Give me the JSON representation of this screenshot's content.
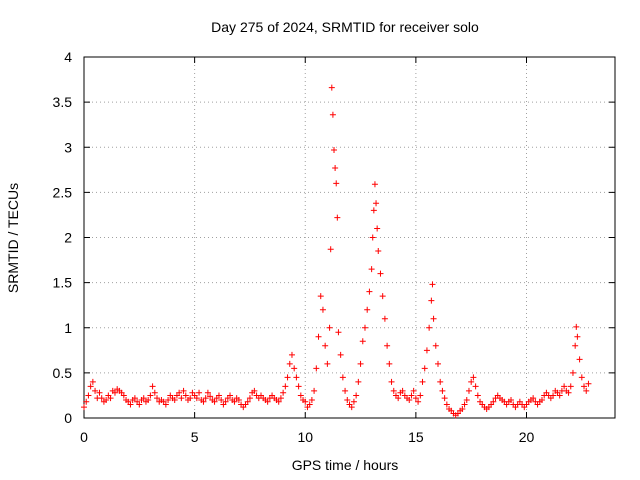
{
  "chart_data": {
    "type": "scatter",
    "title": "Day 275 of 2024, SRMTID for receiver solo",
    "xlabel": "GPS time / hours",
    "ylabel": "SRMTID / TECUs",
    "xlim": [
      0,
      24
    ],
    "ylim": [
      0,
      4
    ],
    "xticks": [
      0,
      5,
      10,
      15,
      20
    ],
    "yticks": [
      0,
      0.5,
      1,
      1.5,
      2,
      2.5,
      3,
      3.5,
      4
    ],
    "xtick_labels": [
      "0",
      "5",
      "10",
      "15",
      "20"
    ],
    "ytick_labels": [
      "0",
      "0.5",
      "1",
      "1.5",
      "2",
      "2.5",
      "3",
      "3.5",
      "4"
    ],
    "grid": true,
    "marker": "+",
    "series": [
      {
        "name": "SRMTID",
        "color": "#ff0000",
        "points": [
          [
            0.0,
            0.12
          ],
          [
            0.1,
            0.18
          ],
          [
            0.2,
            0.25
          ],
          [
            0.3,
            0.35
          ],
          [
            0.4,
            0.4
          ],
          [
            0.5,
            0.3
          ],
          [
            0.6,
            0.22
          ],
          [
            0.7,
            0.28
          ],
          [
            0.8,
            0.22
          ],
          [
            0.9,
            0.18
          ],
          [
            1.0,
            0.2
          ],
          [
            1.1,
            0.25
          ],
          [
            1.2,
            0.22
          ],
          [
            1.3,
            0.3
          ],
          [
            1.4,
            0.28
          ],
          [
            1.5,
            0.32
          ],
          [
            1.6,
            0.3
          ],
          [
            1.7,
            0.28
          ],
          [
            1.8,
            0.25
          ],
          [
            1.9,
            0.2
          ],
          [
            2.0,
            0.18
          ],
          [
            2.1,
            0.15
          ],
          [
            2.2,
            0.2
          ],
          [
            2.3,
            0.22
          ],
          [
            2.4,
            0.18
          ],
          [
            2.5,
            0.15
          ],
          [
            2.6,
            0.2
          ],
          [
            2.7,
            0.22
          ],
          [
            2.8,
            0.18
          ],
          [
            2.9,
            0.2
          ],
          [
            3.0,
            0.25
          ],
          [
            3.1,
            0.35
          ],
          [
            3.2,
            0.28
          ],
          [
            3.3,
            0.22
          ],
          [
            3.4,
            0.18
          ],
          [
            3.5,
            0.2
          ],
          [
            3.6,
            0.18
          ],
          [
            3.7,
            0.15
          ],
          [
            3.8,
            0.2
          ],
          [
            3.9,
            0.25
          ],
          [
            4.0,
            0.22
          ],
          [
            4.1,
            0.2
          ],
          [
            4.2,
            0.25
          ],
          [
            4.3,
            0.28
          ],
          [
            4.4,
            0.22
          ],
          [
            4.5,
            0.3
          ],
          [
            4.6,
            0.25
          ],
          [
            4.7,
            0.2
          ],
          [
            4.8,
            0.22
          ],
          [
            4.9,
            0.28
          ],
          [
            5.0,
            0.25
          ],
          [
            5.1,
            0.22
          ],
          [
            5.2,
            0.28
          ],
          [
            5.3,
            0.2
          ],
          [
            5.4,
            0.18
          ],
          [
            5.5,
            0.22
          ],
          [
            5.6,
            0.28
          ],
          [
            5.7,
            0.24
          ],
          [
            5.8,
            0.2
          ],
          [
            5.9,
            0.18
          ],
          [
            6.0,
            0.22
          ],
          [
            6.1,
            0.25
          ],
          [
            6.2,
            0.2
          ],
          [
            6.3,
            0.15
          ],
          [
            6.4,
            0.18
          ],
          [
            6.5,
            0.22
          ],
          [
            6.6,
            0.25
          ],
          [
            6.7,
            0.2
          ],
          [
            6.8,
            0.18
          ],
          [
            6.9,
            0.22
          ],
          [
            7.0,
            0.2
          ],
          [
            7.1,
            0.15
          ],
          [
            7.2,
            0.12
          ],
          [
            7.3,
            0.15
          ],
          [
            7.4,
            0.18
          ],
          [
            7.5,
            0.22
          ],
          [
            7.6,
            0.28
          ],
          [
            7.7,
            0.3
          ],
          [
            7.8,
            0.25
          ],
          [
            7.9,
            0.22
          ],
          [
            8.0,
            0.25
          ],
          [
            8.1,
            0.22
          ],
          [
            8.2,
            0.2
          ],
          [
            8.3,
            0.18
          ],
          [
            8.4,
            0.22
          ],
          [
            8.5,
            0.25
          ],
          [
            8.6,
            0.22
          ],
          [
            8.7,
            0.2
          ],
          [
            8.8,
            0.18
          ],
          [
            8.9,
            0.22
          ],
          [
            9.0,
            0.28
          ],
          [
            9.1,
            0.35
          ],
          [
            9.2,
            0.45
          ],
          [
            9.3,
            0.6
          ],
          [
            9.4,
            0.7
          ],
          [
            9.5,
            0.55
          ],
          [
            9.6,
            0.45
          ],
          [
            9.7,
            0.35
          ],
          [
            9.8,
            0.25
          ],
          [
            9.9,
            0.2
          ],
          [
            10.0,
            0.18
          ],
          [
            10.1,
            0.12
          ],
          [
            10.2,
            0.15
          ],
          [
            10.3,
            0.2
          ],
          [
            10.4,
            0.3
          ],
          [
            10.5,
            0.55
          ],
          [
            10.6,
            0.9
          ],
          [
            10.7,
            1.35
          ],
          [
            10.8,
            1.2
          ],
          [
            10.9,
            0.8
          ],
          [
            11.0,
            0.6
          ],
          [
            11.1,
            1.0
          ],
          [
            11.15,
            1.87
          ],
          [
            11.2,
            3.66
          ],
          [
            11.25,
            3.36
          ],
          [
            11.3,
            2.97
          ],
          [
            11.35,
            2.77
          ],
          [
            11.4,
            2.6
          ],
          [
            11.45,
            2.22
          ],
          [
            11.5,
            0.95
          ],
          [
            11.6,
            0.7
          ],
          [
            11.7,
            0.45
          ],
          [
            11.8,
            0.3
          ],
          [
            11.9,
            0.2
          ],
          [
            12.0,
            0.15
          ],
          [
            12.1,
            0.12
          ],
          [
            12.2,
            0.18
          ],
          [
            12.3,
            0.25
          ],
          [
            12.4,
            0.4
          ],
          [
            12.5,
            0.6
          ],
          [
            12.6,
            0.85
          ],
          [
            12.7,
            1.0
          ],
          [
            12.8,
            1.2
          ],
          [
            12.9,
            1.4
          ],
          [
            13.0,
            1.65
          ],
          [
            13.05,
            2.0
          ],
          [
            13.1,
            2.3
          ],
          [
            13.15,
            2.59
          ],
          [
            13.2,
            2.38
          ],
          [
            13.25,
            2.1
          ],
          [
            13.3,
            1.85
          ],
          [
            13.4,
            1.6
          ],
          [
            13.5,
            1.35
          ],
          [
            13.6,
            1.1
          ],
          [
            13.7,
            0.8
          ],
          [
            13.8,
            0.6
          ],
          [
            13.9,
            0.4
          ],
          [
            14.0,
            0.3
          ],
          [
            14.1,
            0.25
          ],
          [
            14.2,
            0.22
          ],
          [
            14.3,
            0.28
          ],
          [
            14.4,
            0.3
          ],
          [
            14.5,
            0.25
          ],
          [
            14.6,
            0.22
          ],
          [
            14.7,
            0.2
          ],
          [
            14.8,
            0.25
          ],
          [
            14.9,
            0.3
          ],
          [
            15.0,
            0.22
          ],
          [
            15.1,
            0.18
          ],
          [
            15.2,
            0.25
          ],
          [
            15.3,
            0.4
          ],
          [
            15.4,
            0.55
          ],
          [
            15.5,
            0.75
          ],
          [
            15.6,
            1.0
          ],
          [
            15.7,
            1.3
          ],
          [
            15.75,
            1.48
          ],
          [
            15.8,
            1.1
          ],
          [
            15.9,
            0.8
          ],
          [
            16.0,
            0.6
          ],
          [
            16.1,
            0.4
          ],
          [
            16.2,
            0.3
          ],
          [
            16.3,
            0.22
          ],
          [
            16.4,
            0.15
          ],
          [
            16.5,
            0.1
          ],
          [
            16.6,
            0.08
          ],
          [
            16.7,
            0.05
          ],
          [
            16.8,
            0.03
          ],
          [
            16.9,
            0.05
          ],
          [
            17.0,
            0.08
          ],
          [
            17.1,
            0.1
          ],
          [
            17.2,
            0.15
          ],
          [
            17.3,
            0.2
          ],
          [
            17.4,
            0.3
          ],
          [
            17.5,
            0.4
          ],
          [
            17.6,
            0.45
          ],
          [
            17.7,
            0.35
          ],
          [
            17.8,
            0.25
          ],
          [
            17.9,
            0.18
          ],
          [
            18.0,
            0.15
          ],
          [
            18.1,
            0.12
          ],
          [
            18.2,
            0.1
          ],
          [
            18.3,
            0.12
          ],
          [
            18.4,
            0.15
          ],
          [
            18.5,
            0.18
          ],
          [
            18.6,
            0.22
          ],
          [
            18.7,
            0.25
          ],
          [
            18.8,
            0.22
          ],
          [
            18.9,
            0.2
          ],
          [
            19.0,
            0.18
          ],
          [
            19.1,
            0.15
          ],
          [
            19.2,
            0.18
          ],
          [
            19.3,
            0.2
          ],
          [
            19.4,
            0.15
          ],
          [
            19.5,
            0.12
          ],
          [
            19.6,
            0.15
          ],
          [
            19.7,
            0.18
          ],
          [
            19.8,
            0.15
          ],
          [
            19.9,
            0.12
          ],
          [
            20.0,
            0.15
          ],
          [
            20.1,
            0.18
          ],
          [
            20.2,
            0.2
          ],
          [
            20.3,
            0.22
          ],
          [
            20.4,
            0.18
          ],
          [
            20.5,
            0.15
          ],
          [
            20.6,
            0.18
          ],
          [
            20.7,
            0.2
          ],
          [
            20.8,
            0.25
          ],
          [
            20.9,
            0.28
          ],
          [
            21.0,
            0.25
          ],
          [
            21.1,
            0.22
          ],
          [
            21.2,
            0.25
          ],
          [
            21.3,
            0.3
          ],
          [
            21.4,
            0.28
          ],
          [
            21.5,
            0.25
          ],
          [
            21.6,
            0.3
          ],
          [
            21.7,
            0.35
          ],
          [
            21.8,
            0.3
          ],
          [
            21.9,
            0.28
          ],
          [
            22.0,
            0.35
          ],
          [
            22.1,
            0.5
          ],
          [
            22.2,
            0.8
          ],
          [
            22.25,
            1.01
          ],
          [
            22.3,
            0.9
          ],
          [
            22.4,
            0.65
          ],
          [
            22.5,
            0.45
          ],
          [
            22.6,
            0.35
          ],
          [
            22.7,
            0.3
          ],
          [
            22.8,
            0.38
          ]
        ]
      }
    ]
  }
}
